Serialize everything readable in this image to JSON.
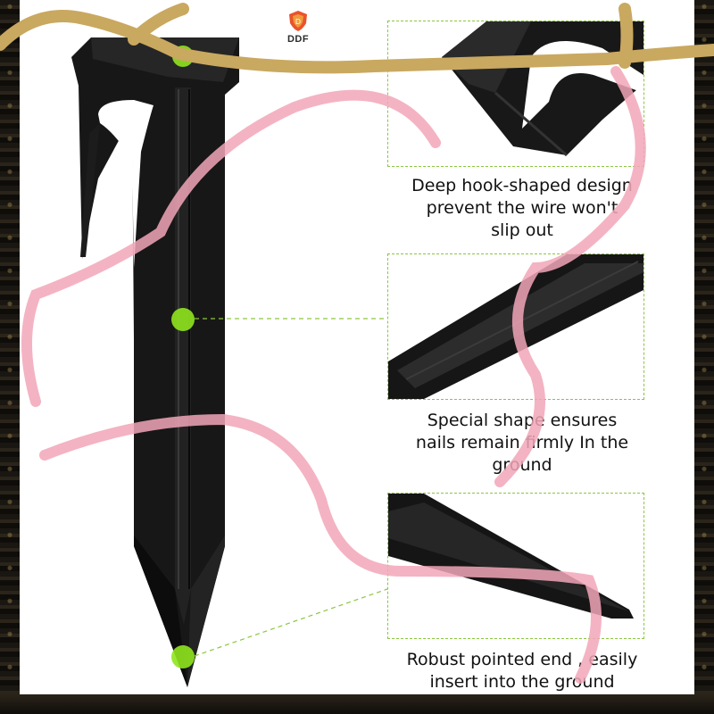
{
  "brand": {
    "logo_text": "DDF"
  },
  "features": [
    {
      "caption": "Deep hook-shaped design\nprevent the wire won't\nslip out"
    },
    {
      "caption": "Special shape ensures\nnails remain firmly In the\nground"
    },
    {
      "caption": "Robust pointed end , easily\ninsert into the ground"
    }
  ],
  "colors": {
    "stake": "#141414",
    "callout_dot": "#8fe51e",
    "dashed_line": "#8cc63f",
    "ribbon": "#f2a6b8",
    "gold": "#c9a860"
  }
}
